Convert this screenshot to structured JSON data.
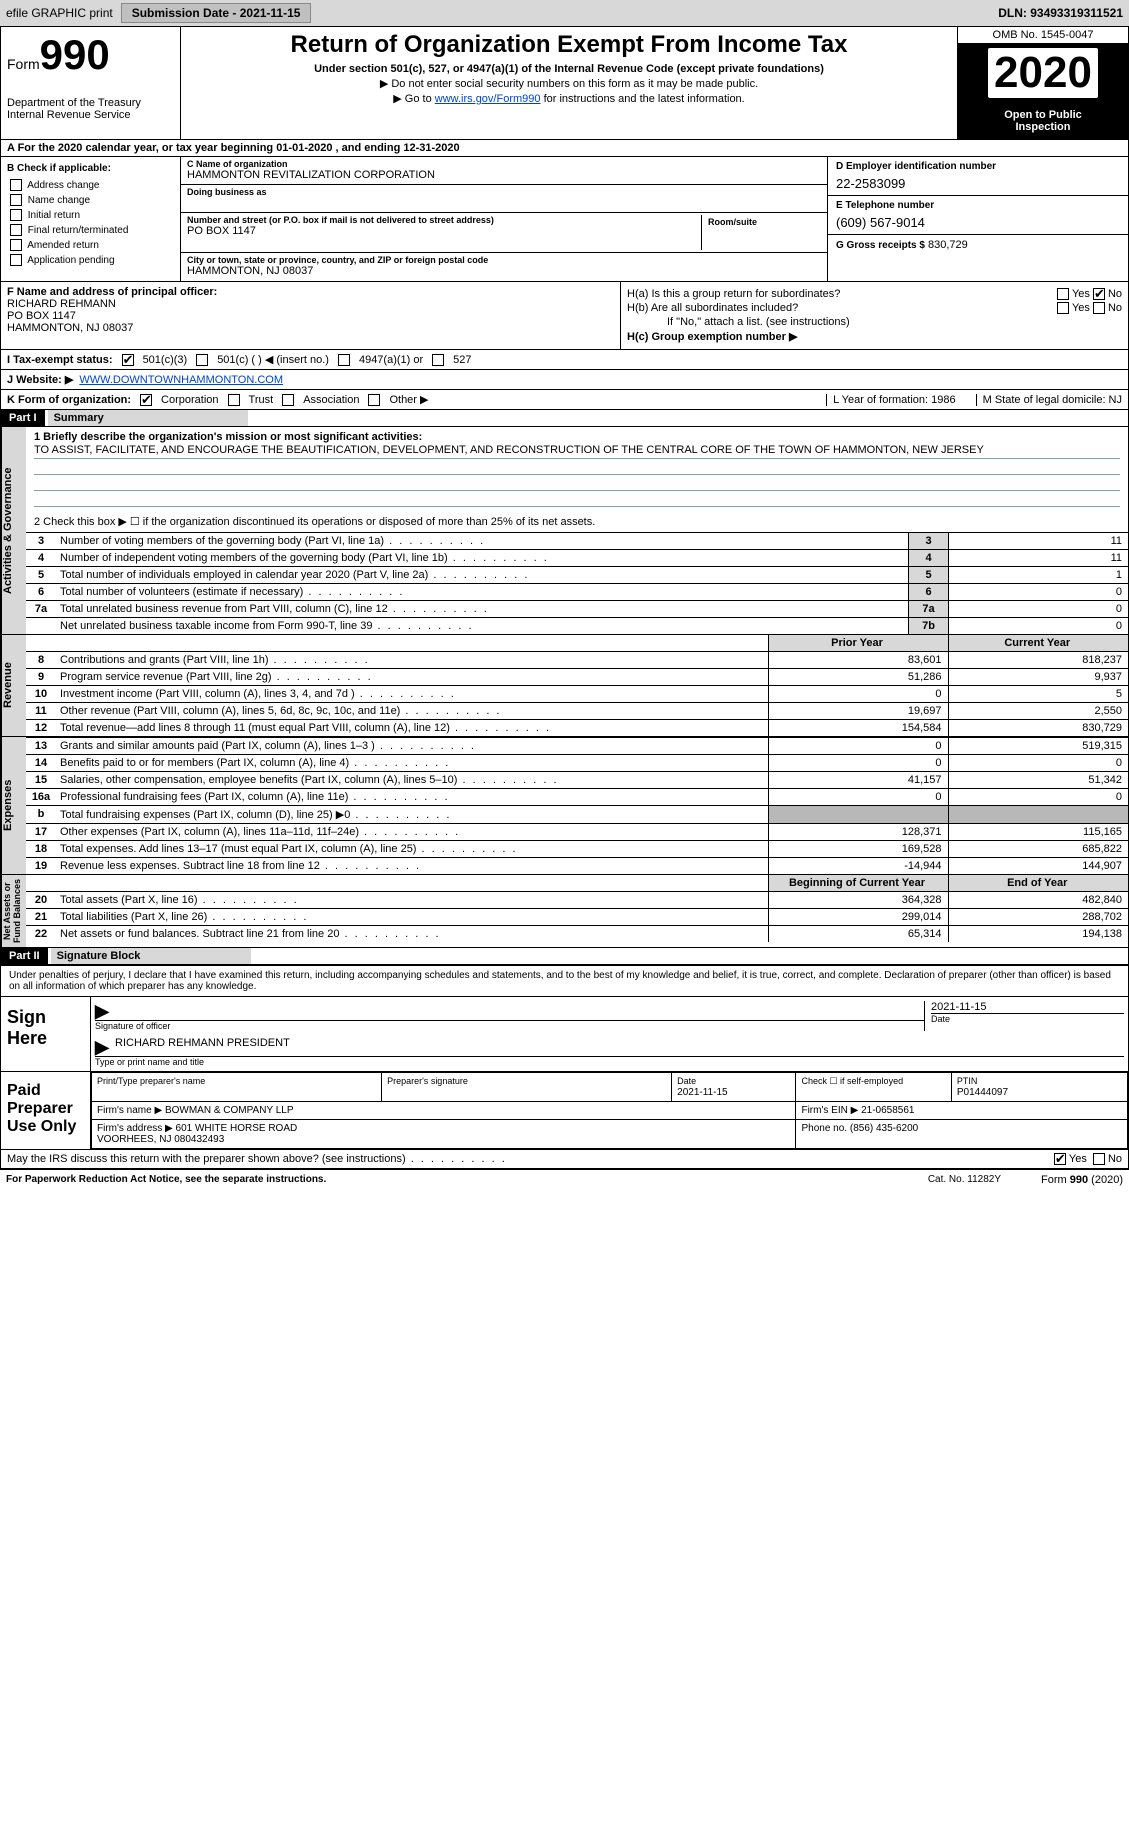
{
  "top": {
    "efile": "efile GRAPHIC print",
    "submission_label": "Submission Date - 2021-11-15",
    "dln": "DLN: 93493319311521"
  },
  "header": {
    "form_word": "Form",
    "form_num": "990",
    "dept": "Department of the Treasury\nInternal Revenue Service",
    "title": "Return of Organization Exempt From Income Tax",
    "subtitle": "Under section 501(c), 527, or 4947(a)(1) of the Internal Revenue Code (except private foundations)",
    "note1": "▶ Do not enter social security numbers on this form as it may be made public.",
    "note2_pre": "▶ Go to ",
    "note2_link": "www.irs.gov/Form990",
    "note2_post": " for instructions and the latest information.",
    "omb": "OMB No. 1545-0047",
    "year": "2020",
    "open": "Open to Public\nInspection"
  },
  "period": "A For the 2020 calendar year, or tax year beginning 01-01-2020   , and ending 12-31-2020",
  "checkB": {
    "hdr": "B Check if applicable:",
    "items": [
      "Address change",
      "Name change",
      "Initial return",
      "Final return/terminated",
      "Amended return",
      "Application pending"
    ]
  },
  "org": {
    "name_lbl": "C Name of organization",
    "name": "HAMMONTON REVITALIZATION CORPORATION",
    "dba_lbl": "Doing business as",
    "dba": "",
    "addr_lbl": "Number and street (or P.O. box if mail is not delivered to street address)",
    "addr": "PO BOX 1147",
    "room_lbl": "Room/suite",
    "city_lbl": "City or town, state or province, country, and ZIP or foreign postal code",
    "city": "HAMMONTON, NJ  08037"
  },
  "ein": {
    "d_lbl": "D Employer identification number",
    "d_val": "22-2583099",
    "e_lbl": "E Telephone number",
    "e_val": "(609) 567-9014",
    "g_lbl": "G Gross receipts $",
    "g_val": "830,729"
  },
  "officer": {
    "f_lbl": "F Name and address of principal officer:",
    "name": "RICHARD REHMANN",
    "addr1": "PO BOX 1147",
    "addr2": "HAMMONTON, NJ  08037"
  },
  "h": {
    "ha": "H(a)  Is this a group return for subordinates?",
    "hb": "H(b)  Are all subordinates included?",
    "hb_note": "If \"No,\" attach a list. (see instructions)",
    "hc": "H(c)  Group exemption number ▶"
  },
  "tax_status": {
    "i": "I  Tax-exempt status:",
    "o1": "501(c)(3)",
    "o2": "501(c) (  ) ◀ (insert no.)",
    "o3": "4947(a)(1) or",
    "o4": "527"
  },
  "website": {
    "j": "J  Website: ▶",
    "url": "WWW.DOWNTOWNHAMMONTON.COM"
  },
  "kform": {
    "k": "K Form of organization:",
    "opts": [
      "Corporation",
      "Trust",
      "Association",
      "Other ▶"
    ],
    "l": "L Year of formation: 1986",
    "m": "M State of legal domicile: NJ"
  },
  "part1": {
    "hdr": "Part I",
    "title": "Summary",
    "line1_lbl": "1  Briefly describe the organization's mission or most significant activities:",
    "mission": "TO ASSIST, FACILITATE, AND ENCOURAGE THE BEAUTIFICATION, DEVELOPMENT, AND RECONSTRUCTION OF THE CENTRAL CORE OF THE TOWN OF HAMMONTON, NEW JERSEY",
    "line2": "2   Check this box ▶ ☐  if the organization discontinued its operations or disposed of more than 25% of its net assets.",
    "gov_lines": [
      {
        "n": "3",
        "d": "Number of voting members of the governing body (Part VI, line 1a)",
        "box": "3",
        "v": "11"
      },
      {
        "n": "4",
        "d": "Number of independent voting members of the governing body (Part VI, line 1b)",
        "box": "4",
        "v": "11"
      },
      {
        "n": "5",
        "d": "Total number of individuals employed in calendar year 2020 (Part V, line 2a)",
        "box": "5",
        "v": "1"
      },
      {
        "n": "6",
        "d": "Total number of volunteers (estimate if necessary)",
        "box": "6",
        "v": "0"
      },
      {
        "n": "7a",
        "d": "Total unrelated business revenue from Part VIII, column (C), line 12",
        "box": "7a",
        "v": "0"
      },
      {
        "n": "",
        "d": "Net unrelated business taxable income from Form 990-T, line 39",
        "box": "7b",
        "v": "0"
      }
    ],
    "py_hdr": "Prior Year",
    "cy_hdr": "Current Year",
    "rev_lines": [
      {
        "n": "8",
        "d": "Contributions and grants (Part VIII, line 1h)",
        "py": "83,601",
        "cy": "818,237"
      },
      {
        "n": "9",
        "d": "Program service revenue (Part VIII, line 2g)",
        "py": "51,286",
        "cy": "9,937"
      },
      {
        "n": "10",
        "d": "Investment income (Part VIII, column (A), lines 3, 4, and 7d )",
        "py": "0",
        "cy": "5"
      },
      {
        "n": "11",
        "d": "Other revenue (Part VIII, column (A), lines 5, 6d, 8c, 9c, 10c, and 11e)",
        "py": "19,697",
        "cy": "2,550"
      },
      {
        "n": "12",
        "d": "Total revenue—add lines 8 through 11 (must equal Part VIII, column (A), line 12)",
        "py": "154,584",
        "cy": "830,729"
      }
    ],
    "exp_lines": [
      {
        "n": "13",
        "d": "Grants and similar amounts paid (Part IX, column (A), lines 1–3 )",
        "py": "0",
        "cy": "519,315"
      },
      {
        "n": "14",
        "d": "Benefits paid to or for members (Part IX, column (A), line 4)",
        "py": "0",
        "cy": "0"
      },
      {
        "n": "15",
        "d": "Salaries, other compensation, employee benefits (Part IX, column (A), lines 5–10)",
        "py": "41,157",
        "cy": "51,342"
      },
      {
        "n": "16a",
        "d": "Professional fundraising fees (Part IX, column (A), line 11e)",
        "py": "0",
        "cy": "0"
      },
      {
        "n": "b",
        "d": "Total fundraising expenses (Part IX, column (D), line 25) ▶0",
        "py": "",
        "cy": "",
        "grey": true
      },
      {
        "n": "17",
        "d": "Other expenses (Part IX, column (A), lines 11a–11d, 11f–24e)",
        "py": "128,371",
        "cy": "115,165"
      },
      {
        "n": "18",
        "d": "Total expenses. Add lines 13–17 (must equal Part IX, column (A), line 25)",
        "py": "169,528",
        "cy": "685,822"
      },
      {
        "n": "19",
        "d": "Revenue less expenses. Subtract line 18 from line 12",
        "py": "-14,944",
        "cy": "144,907"
      }
    ],
    "boy_hdr": "Beginning of Current Year",
    "eoy_hdr": "End of Year",
    "na_lines": [
      {
        "n": "20",
        "d": "Total assets (Part X, line 16)",
        "py": "364,328",
        "cy": "482,840"
      },
      {
        "n": "21",
        "d": "Total liabilities (Part X, line 26)",
        "py": "299,014",
        "cy": "288,702"
      },
      {
        "n": "22",
        "d": "Net assets or fund balances. Subtract line 21 from line 20",
        "py": "65,314",
        "cy": "194,138"
      }
    ]
  },
  "side_labels": {
    "gov": "Activities & Governance",
    "rev": "Revenue",
    "exp": "Expenses",
    "na": "Net Assets or\nFund Balances"
  },
  "part2": {
    "hdr": "Part II",
    "title": "Signature Block",
    "decl": "Under penalties of perjury, I declare that I have examined this return, including accompanying schedules and statements, and to the best of my knowledge and belief, it is true, correct, and complete. Declaration of preparer (other than officer) is based on all information of which preparer has any knowledge.",
    "sign_here": "Sign\nHere",
    "sig_of_officer": "Signature of officer",
    "sig_date": "2021-11-15",
    "date_lbl": "Date",
    "officer_name": "RICHARD REHMANN PRESIDENT",
    "type_lbl": "Type or print name and title",
    "paid": "Paid\nPreparer\nUse Only",
    "prep_name_lbl": "Print/Type preparer's name",
    "prep_sig_lbl": "Preparer's signature",
    "prep_date_lbl": "Date",
    "prep_date": "2021-11-15",
    "check_self": "Check ☐ if self-employed",
    "ptin_lbl": "PTIN",
    "ptin": "P01444097",
    "firm_name_lbl": "Firm's name      ▶",
    "firm_name": "BOWMAN & COMPANY LLP",
    "firm_ein_lbl": "Firm's EIN ▶",
    "firm_ein": "21-0658561",
    "firm_addr_lbl": "Firm's address ▶",
    "firm_addr": "601 WHITE HORSE ROAD\nVOORHEES, NJ  080432493",
    "phone_lbl": "Phone no.",
    "phone": "(856) 435-6200",
    "discuss": "May the IRS discuss this return with the preparer shown above? (see instructions)"
  },
  "footer": {
    "pra": "For Paperwork Reduction Act Notice, see the separate instructions.",
    "cat": "Cat. No. 11282Y",
    "form": "Form 990 (2020)"
  },
  "colors": {
    "bg_grey": "#d8d8d8",
    "link": "#0044cc",
    "mission_line": "#7aa98a"
  }
}
